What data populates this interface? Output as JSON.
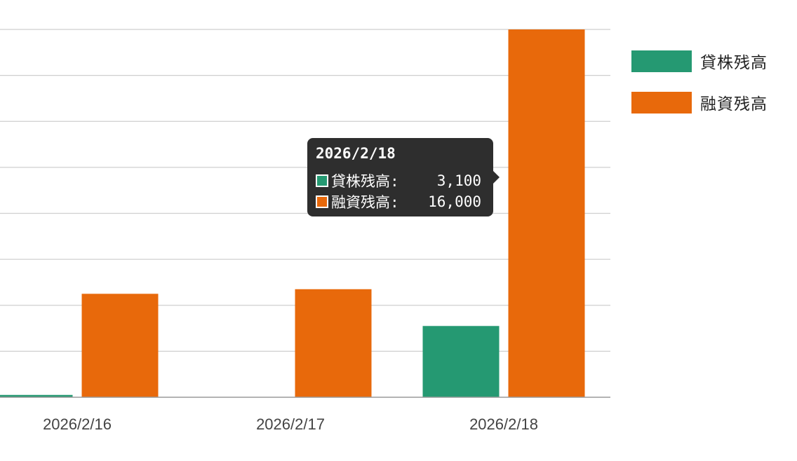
{
  "chart_data": {
    "type": "bar",
    "categories": [
      "2026/2/16",
      "2026/2/17",
      "2026/2/18"
    ],
    "series": [
      {
        "name": "貸株残高",
        "color": "#259972",
        "values": [
          100,
          0,
          3100
        ]
      },
      {
        "name": "融資残高",
        "color": "#e8690b",
        "values": [
          4500,
          4700,
          16000
        ]
      }
    ],
    "ylim": [
      0,
      16000
    ],
    "grid": true,
    "legend_position": "right"
  },
  "tooltip": {
    "title": "2026/2/18",
    "rows": [
      {
        "label": "貸株残高:",
        "value": "3,100",
        "color": "#259972"
      },
      {
        "label": "融資残高:",
        "value": "16,000",
        "color": "#e8690b"
      }
    ]
  }
}
